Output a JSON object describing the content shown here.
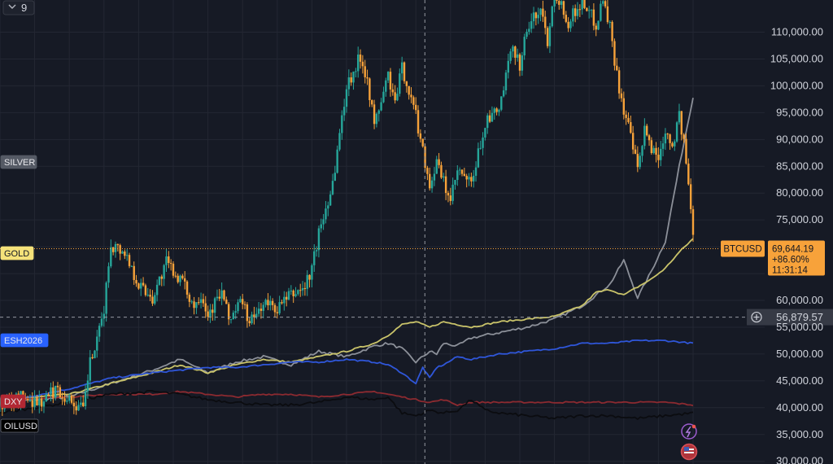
{
  "toolbar": {
    "collapse_count": "9"
  },
  "chart_data": {
    "type": "line",
    "title": "",
    "xlabel": "",
    "ylabel": "",
    "y_ticks": [
      30000,
      35000,
      40000,
      45000,
      50000,
      55000,
      60000,
      65000,
      70000,
      75000,
      80000,
      85000,
      90000,
      95000,
      100000,
      105000,
      110000
    ],
    "y_tick_labels": [
      "30,000.00",
      "35,000.00",
      "40,000.00",
      "45,000.00",
      "50,000.00",
      "55,000.00",
      "60,000.00",
      "",
      "",
      "75,000.00",
      "80,000.00",
      "85,000.00",
      "90,000.00",
      "95,000.00",
      "100,000.00",
      "105,000.00",
      "110,000.00"
    ],
    "ylim": [
      29500,
      116000
    ],
    "xlim": [
      0,
      100
    ],
    "grid": true,
    "crosshair": {
      "x": 61.3,
      "y": 56879.57,
      "label": "56,879.57"
    },
    "last_price": {
      "symbol": "BTCUSD",
      "price": "69,644.19",
      "change": "+86.60%",
      "countdown": "11:31:14",
      "value": 69644.19
    },
    "series": [
      {
        "name": "BTCUSD",
        "style": "candles",
        "color_up": "#26a69a",
        "color_down": "#f7a23a",
        "x": [
          0,
          3,
          6,
          8,
          10,
          12,
          13,
          14,
          15,
          16,
          18,
          20,
          22,
          24,
          26,
          28,
          29,
          30,
          32,
          33,
          35,
          36,
          38,
          40,
          42,
          44,
          45,
          46,
          48,
          50,
          52,
          53,
          54,
          56,
          57,
          58,
          60,
          62,
          63,
          65,
          66,
          68,
          70,
          72,
          74,
          75,
          76,
          78,
          79,
          80,
          82,
          84,
          86,
          87,
          88,
          89,
          90,
          91,
          92,
          93,
          94,
          95,
          96,
          97,
          98,
          99,
          100
        ],
        "y": [
          40500,
          42000,
          41000,
          43500,
          41500,
          39500,
          48500,
          52000,
          58500,
          70500,
          69000,
          63000,
          60500,
          67000,
          64000,
          59000,
          61500,
          57500,
          61500,
          56500,
          60000,
          55500,
          59500,
          58500,
          61000,
          62500,
          66000,
          72500,
          82000,
          100000,
          105500,
          101500,
          92500,
          102000,
          96500,
          103500,
          94500,
          81500,
          85500,
          78500,
          84000,
          81500,
          93000,
          95500,
          107500,
          104000,
          110500,
          114500,
          108500,
          118000,
          112000,
          116000,
          111500,
          116500,
          111000,
          102000,
          95500,
          90500,
          84000,
          91500,
          88500,
          86500,
          92000,
          89000,
          94500,
          86000,
          72000
        ]
      },
      {
        "name": "SILVER",
        "tag_color": "#555a65",
        "color": "#8c9099",
        "x": [
          0,
          10,
          16,
          22,
          26,
          30,
          34,
          38,
          42,
          46,
          50,
          54,
          56,
          58,
          60,
          62,
          63,
          64,
          66,
          68,
          72,
          76,
          80,
          84,
          88,
          90,
          92,
          94,
          96,
          98,
          100
        ],
        "y": [
          41000,
          42000,
          44500,
          47000,
          49000,
          46500,
          48500,
          49500,
          48000,
          50500,
          49500,
          51500,
          52000,
          51000,
          48500,
          50500,
          50000,
          52000,
          51500,
          53000,
          54000,
          55000,
          56500,
          59000,
          63000,
          67500,
          60500,
          65500,
          71000,
          85000,
          98000
        ]
      },
      {
        "name": "GOLD",
        "tag_color": "#f5e27a",
        "color": "#c9c36a",
        "x": [
          0,
          10,
          16,
          22,
          26,
          30,
          34,
          38,
          42,
          46,
          50,
          54,
          56,
          58,
          60,
          62,
          64,
          66,
          68,
          72,
          76,
          80,
          84,
          86,
          88,
          90,
          92,
          94,
          96,
          98,
          100
        ],
        "y": [
          41500,
          42500,
          44500,
          46500,
          48000,
          46500,
          48000,
          49000,
          48500,
          49500,
          50500,
          52000,
          53500,
          55500,
          56000,
          55000,
          56000,
          55500,
          55000,
          56000,
          56500,
          57000,
          59000,
          61500,
          62000,
          61000,
          62500,
          64000,
          66000,
          69000,
          71500
        ]
      },
      {
        "name": "ESH2026",
        "tag_color": "#2962ff",
        "color": "#2f56d9",
        "x": [
          0,
          10,
          16,
          22,
          26,
          30,
          34,
          38,
          42,
          46,
          50,
          54,
          56,
          58,
          60,
          61,
          62,
          63,
          64,
          66,
          68,
          72,
          76,
          80,
          84,
          88,
          92,
          96,
          100
        ],
        "y": [
          41000,
          43500,
          45500,
          46500,
          47000,
          47500,
          47500,
          48000,
          48500,
          48500,
          49000,
          48500,
          48000,
          46500,
          44500,
          47500,
          45500,
          47500,
          48000,
          49500,
          49000,
          50000,
          50500,
          51000,
          52000,
          52000,
          52500,
          52500,
          52000
        ]
      },
      {
        "name": "DXY",
        "tag_color": "#b22833",
        "color": "#8c2a30",
        "x": [
          0,
          10,
          16,
          22,
          26,
          30,
          34,
          38,
          42,
          46,
          50,
          54,
          56,
          58,
          60,
          62,
          64,
          66,
          68,
          72,
          76,
          80,
          84,
          88,
          92,
          96,
          100
        ],
        "y": [
          41500,
          42000,
          42500,
          42500,
          43000,
          42500,
          42000,
          42500,
          42500,
          42000,
          42500,
          43000,
          42500,
          42000,
          41500,
          41000,
          41500,
          40500,
          41000,
          41000,
          41000,
          41000,
          41000,
          41000,
          41000,
          41000,
          40500
        ]
      },
      {
        "name": "OILUSD",
        "tag_color": "#000000",
        "color": "#0b0c10",
        "x": [
          0,
          10,
          16,
          22,
          26,
          30,
          34,
          38,
          42,
          46,
          50,
          54,
          56,
          58,
          60,
          62,
          64,
          66,
          68,
          70,
          72,
          76,
          80,
          84,
          88,
          92,
          96,
          100
        ],
        "y": [
          39000,
          41000,
          42500,
          43000,
          42500,
          41500,
          41000,
          40500,
          40500,
          41000,
          42000,
          41500,
          42000,
          39000,
          38500,
          39500,
          39000,
          39500,
          41500,
          39500,
          39000,
          38500,
          38000,
          38500,
          38500,
          38000,
          38500,
          39000
        ]
      }
    ]
  }
}
